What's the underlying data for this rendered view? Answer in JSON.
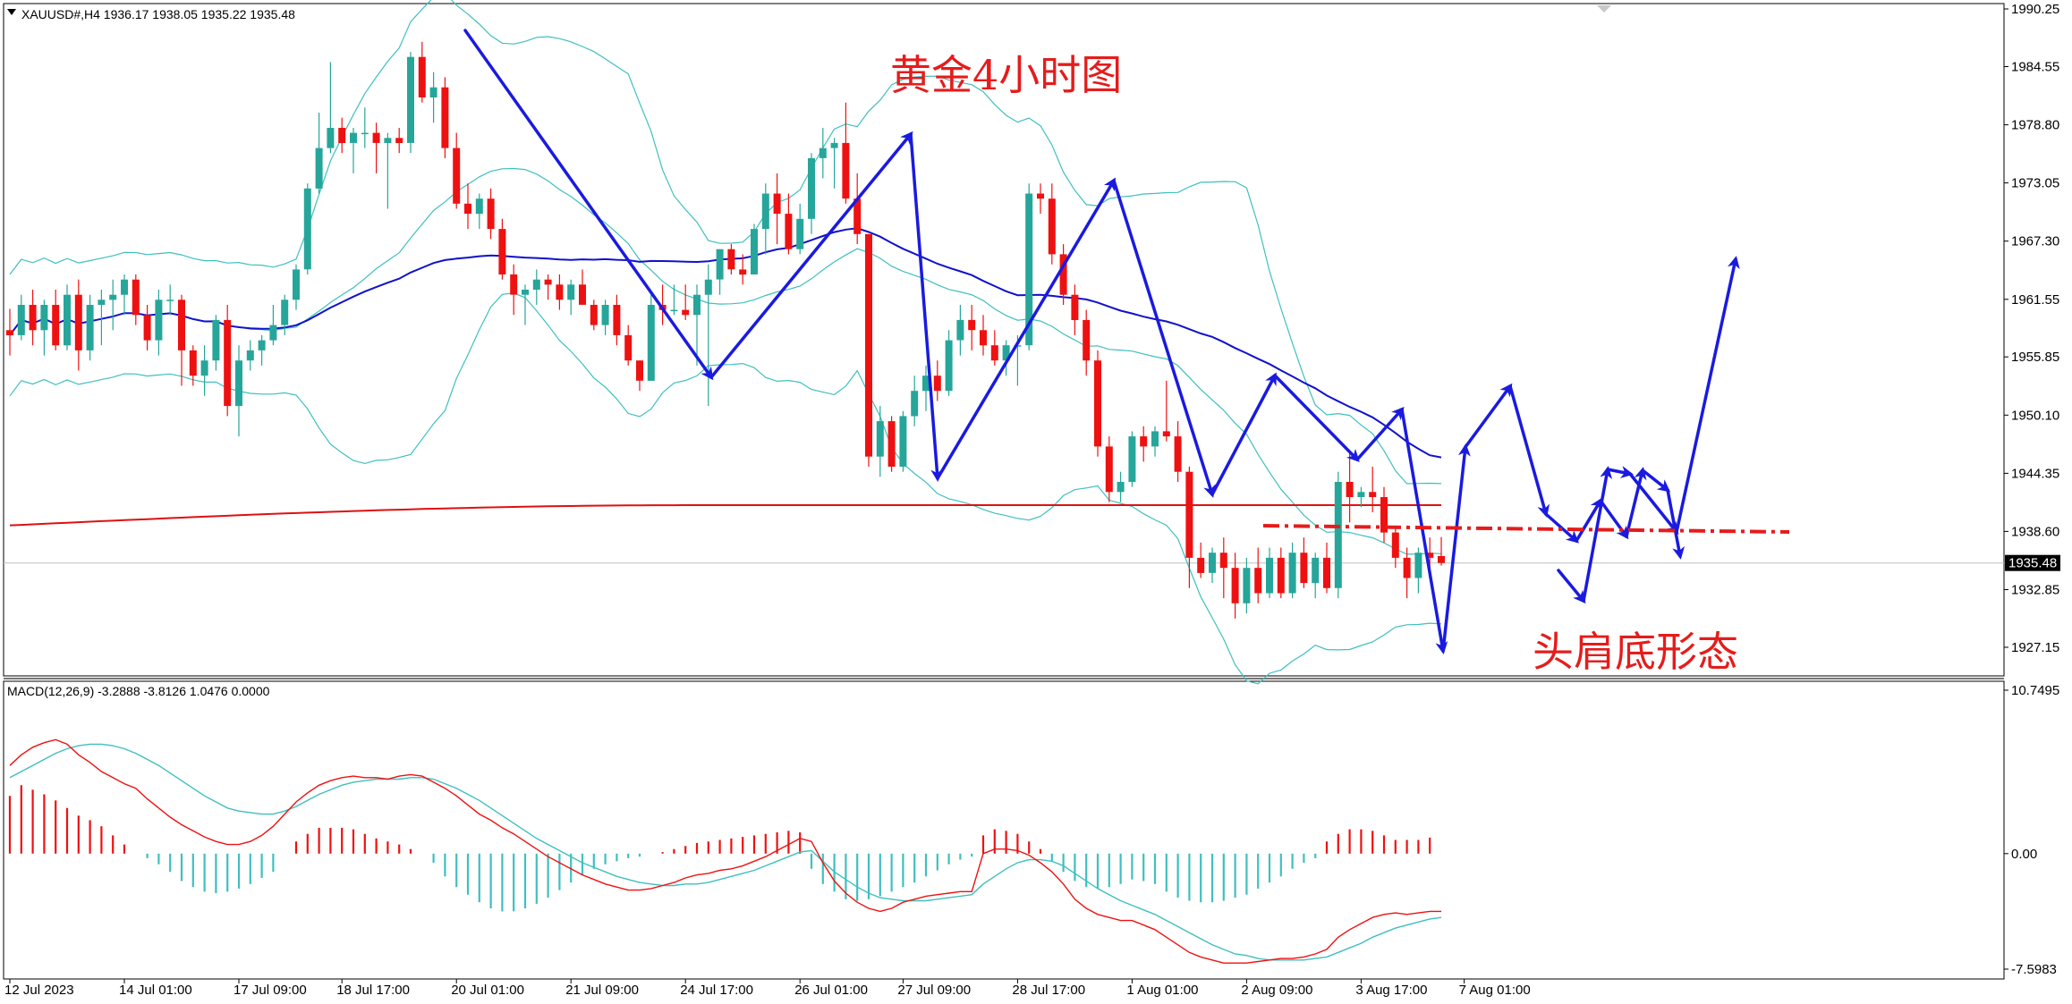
{
  "window": {
    "symbol_info": "XAUUSD#,H4  1936.17 1938.05 1935.22 1935.48",
    "macd_info": "MACD(12,26,9) -3.2888 -3.8126 1.0476 0.0000",
    "current_price_label": "1935.48"
  },
  "annotations": {
    "title": "黄金4小时图",
    "pattern": "头肩底形态"
  },
  "colors": {
    "bull_candle": "#26a69a",
    "bear_candle": "#ee1111",
    "bollinger": "#3fbfbf",
    "ma_blue": "#1111cc",
    "ma_red": "#dd1111",
    "macd_signal": "#3fbfbf",
    "macd_line": "#ee1111",
    "arrow": "#1a1ae0"
  },
  "chart_data": [
    {
      "type": "candlestick",
      "symbol": "XAUUSD#",
      "timeframe": "H4",
      "y_ticks": [
        "1990.25",
        "1984.55",
        "1978.80",
        "1973.05",
        "1967.30",
        "1961.55",
        "1955.85",
        "1950.10",
        "1944.35",
        "1938.60",
        "1932.85",
        "1927.15"
      ],
      "ylim": [
        1926.0,
        1990.25
      ],
      "x_tick_labels": [
        "12 Jul 2023",
        "14 Jul 01:00",
        "17 Jul 09:00",
        "18 Jul 17:00",
        "20 Jul 01:00",
        "21 Jul 09:00",
        "24 Jul 17:00",
        "26 Jul 01:00",
        "27 Jul 09:00",
        "28 Jul 17:00",
        "1 Aug 01:00",
        "2 Aug 09:00",
        "3 Aug 17:00",
        "7 Aug 01:00"
      ],
      "candles": [
        [
          1958.5,
          1960.6,
          1956.0,
          1958.0
        ],
        [
          1958.0,
          1962.0,
          1957.5,
          1961.0
        ],
        [
          1961.0,
          1962.5,
          1957.0,
          1958.5
        ],
        [
          1958.5,
          1961.5,
          1956.0,
          1961.0
        ],
        [
          1961.0,
          1962.5,
          1956.5,
          1957.0
        ],
        [
          1957.0,
          1963.0,
          1956.5,
          1962.0
        ],
        [
          1962.0,
          1963.5,
          1954.5,
          1956.5
        ],
        [
          1956.5,
          1962.0,
          1955.5,
          1961.0
        ],
        [
          1961.0,
          1962.5,
          1957.0,
          1961.5
        ],
        [
          1961.5,
          1963.5,
          1958.5,
          1962.0
        ],
        [
          1962.0,
          1964.0,
          1960.0,
          1963.5
        ],
        [
          1963.5,
          1964.0,
          1959.0,
          1960.0
        ],
        [
          1960.0,
          1961.0,
          1956.5,
          1957.5
        ],
        [
          1957.5,
          1962.5,
          1956.0,
          1961.5
        ],
        [
          1961.5,
          1963.0,
          1960.0,
          1961.5
        ],
        [
          1961.5,
          1962.0,
          1953.0,
          1956.5
        ],
        [
          1956.5,
          1957.0,
          1953.0,
          1954.0
        ],
        [
          1954.0,
          1957.0,
          1952.0,
          1955.5
        ],
        [
          1955.5,
          1960.0,
          1954.5,
          1959.5
        ],
        [
          1959.5,
          1961.0,
          1950.0,
          1951.0
        ],
        [
          1951.0,
          1957.0,
          1948.0,
          1955.5
        ],
        [
          1955.5,
          1957.5,
          1954.5,
          1956.5
        ],
        [
          1956.5,
          1958.0,
          1955.0,
          1957.5
        ],
        [
          1957.5,
          1961.0,
          1957.0,
          1959.0
        ],
        [
          1959.0,
          1962.0,
          1958.0,
          1961.5
        ],
        [
          1961.5,
          1965.0,
          1960.5,
          1964.5
        ],
        [
          1964.5,
          1973.0,
          1964.0,
          1972.5
        ],
        [
          1972.5,
          1980.0,
          1972.0,
          1976.5
        ],
        [
          1976.5,
          1985.0,
          1976.0,
          1978.5
        ],
        [
          1978.5,
          1979.5,
          1976.0,
          1977.0
        ],
        [
          1977.0,
          1978.5,
          1974.0,
          1978.0
        ],
        [
          1978.0,
          1980.5,
          1976.5,
          1978.0
        ],
        [
          1978.0,
          1979.0,
          1974.0,
          1977.0
        ],
        [
          1977.0,
          1978.0,
          1970.5,
          1977.5
        ],
        [
          1977.5,
          1978.5,
          1976.0,
          1977.0
        ],
        [
          1977.0,
          1986.0,
          1976.0,
          1985.5
        ],
        [
          1985.5,
          1987.0,
          1981.0,
          1981.5
        ],
        [
          1981.5,
          1984.0,
          1979.0,
          1982.5
        ],
        [
          1982.5,
          1983.5,
          1975.5,
          1976.5
        ],
        [
          1976.5,
          1978.0,
          1970.5,
          1971.0
        ],
        [
          1971.0,
          1973.0,
          1968.5,
          1970.0
        ],
        [
          1970.0,
          1972.0,
          1968.5,
          1971.5
        ],
        [
          1971.5,
          1972.5,
          1967.5,
          1968.5
        ],
        [
          1968.5,
          1969.5,
          1963.5,
          1964.0
        ],
        [
          1964.0,
          1965.0,
          1960.0,
          1962.0
        ],
        [
          1962.0,
          1963.0,
          1959.0,
          1962.5
        ],
        [
          1962.5,
          1964.5,
          1961.0,
          1963.5
        ],
        [
          1963.5,
          1964.0,
          1961.5,
          1963.0
        ],
        [
          1963.0,
          1964.0,
          1960.5,
          1961.5
        ],
        [
          1961.5,
          1963.5,
          1960.0,
          1963.0
        ],
        [
          1963.0,
          1964.5,
          1961.0,
          1961.0
        ],
        [
          1961.0,
          1961.5,
          1958.5,
          1959.0
        ],
        [
          1959.0,
          1961.5,
          1958.0,
          1961.0
        ],
        [
          1961.0,
          1962.0,
          1957.0,
          1958.0
        ],
        [
          1958.0,
          1959.0,
          1955.0,
          1955.5
        ],
        [
          1955.5,
          1955.5,
          1952.5,
          1953.5
        ],
        [
          1953.5,
          1962.0,
          1953.5,
          1961.0
        ],
        [
          1961.0,
          1963.0,
          1959.0,
          1960.5
        ],
        [
          1960.5,
          1963.0,
          1960.0,
          1960.5
        ],
        [
          1960.5,
          1963.0,
          1959.5,
          1960.0
        ],
        [
          1960.0,
          1963.0,
          1955.0,
          1962.0
        ],
        [
          1962.0,
          1965.0,
          1951.0,
          1963.5
        ],
        [
          1963.5,
          1966.5,
          1962.0,
          1966.5
        ],
        [
          1966.5,
          1967.0,
          1964.0,
          1964.5
        ],
        [
          1964.5,
          1966.0,
          1963.0,
          1964.0
        ],
        [
          1964.0,
          1969.0,
          1964.0,
          1968.5
        ],
        [
          1968.5,
          1973.0,
          1966.0,
          1972.0
        ],
        [
          1972.0,
          1974.0,
          1967.0,
          1970.0
        ],
        [
          1970.0,
          1972.0,
          1966.0,
          1966.5
        ],
        [
          1966.5,
          1971.0,
          1966.0,
          1969.5
        ],
        [
          1969.5,
          1976.0,
          1968.0,
          1975.5
        ],
        [
          1975.5,
          1978.5,
          1973.5,
          1976.5
        ],
        [
          1976.5,
          1977.5,
          1972.5,
          1977.0
        ],
        [
          1977.0,
          1981.0,
          1971.0,
          1971.5
        ],
        [
          1971.5,
          1974.0,
          1967.0,
          1968.0
        ],
        [
          1968.0,
          1968.0,
          1945.0,
          1946.0
        ],
        [
          1946.0,
          1951.0,
          1944.0,
          1949.5
        ],
        [
          1949.5,
          1950.0,
          1944.5,
          1945.0
        ],
        [
          1945.0,
          1950.5,
          1944.5,
          1950.0
        ],
        [
          1950.0,
          1954.0,
          1949.0,
          1952.5
        ],
        [
          1952.5,
          1955.0,
          1950.5,
          1954.0
        ],
        [
          1954.0,
          1955.5,
          1951.5,
          1952.5
        ],
        [
          1952.5,
          1958.5,
          1952.0,
          1957.5
        ],
        [
          1957.5,
          1961.0,
          1956.0,
          1959.5
        ],
        [
          1959.5,
          1961.0,
          1956.5,
          1958.5
        ],
        [
          1958.5,
          1960.0,
          1956.0,
          1957.0
        ],
        [
          1957.0,
          1958.5,
          1955.0,
          1955.5
        ],
        [
          1955.5,
          1957.5,
          1954.0,
          1957.0
        ],
        [
          1957.0,
          1958.0,
          1953.0,
          1957.0
        ],
        [
          1957.0,
          1973.0,
          1956.5,
          1972.0
        ],
        [
          1972.0,
          1973.0,
          1970.0,
          1971.5
        ],
        [
          1971.5,
          1973.0,
          1965.0,
          1966.0
        ],
        [
          1966.0,
          1967.0,
          1961.0,
          1962.0
        ],
        [
          1962.0,
          1963.0,
          1958.0,
          1959.5
        ],
        [
          1959.5,
          1960.5,
          1954.0,
          1955.5
        ],
        [
          1955.5,
          1956.5,
          1946.0,
          1947.0
        ],
        [
          1947.0,
          1948.0,
          1941.5,
          1942.5
        ],
        [
          1942.5,
          1944.5,
          1941.5,
          1943.5
        ],
        [
          1943.5,
          1948.5,
          1943.0,
          1948.0
        ],
        [
          1948.0,
          1949.0,
          1945.5,
          1947.0
        ],
        [
          1947.0,
          1949.0,
          1946.0,
          1948.5
        ],
        [
          1948.5,
          1953.5,
          1947.5,
          1948.0
        ],
        [
          1948.0,
          1949.5,
          1943.5,
          1944.5
        ],
        [
          1944.5,
          1945.0,
          1933.0,
          1936.0
        ],
        [
          1936.0,
          1937.5,
          1934.0,
          1934.5
        ],
        [
          1934.5,
          1937.0,
          1933.5,
          1936.5
        ],
        [
          1936.5,
          1938.0,
          1932.0,
          1935.0
        ],
        [
          1935.0,
          1936.5,
          1930.0,
          1931.5
        ],
        [
          1931.5,
          1936.0,
          1930.5,
          1935.0
        ],
        [
          1935.0,
          1937.0,
          1931.5,
          1932.5
        ],
        [
          1932.5,
          1937.0,
          1932.0,
          1936.0
        ],
        [
          1936.0,
          1937.0,
          1932.0,
          1932.5
        ],
        [
          1932.5,
          1937.5,
          1932.0,
          1936.5
        ],
        [
          1936.5,
          1938.0,
          1933.0,
          1933.5
        ],
        [
          1933.5,
          1936.5,
          1932.0,
          1936.0
        ],
        [
          1936.0,
          1937.5,
          1932.5,
          1933.0
        ],
        [
          1933.0,
          1944.5,
          1932.0,
          1943.5
        ],
        [
          1943.5,
          1946.5,
          1939.5,
          1942.0
        ],
        [
          1942.0,
          1943.0,
          1941.0,
          1942.5
        ],
        [
          1942.5,
          1945.0,
          1940.5,
          1942.0
        ],
        [
          1942.0,
          1943.0,
          1937.5,
          1938.5
        ],
        [
          1938.5,
          1939.0,
          1935.0,
          1936.0
        ],
        [
          1936.0,
          1937.0,
          1932.0,
          1934.0
        ],
        [
          1934.0,
          1937.0,
          1932.5,
          1936.5
        ],
        [
          1936.5,
          1938.0,
          1935.0,
          1936.0
        ],
        [
          1936.17,
          1938.05,
          1935.22,
          1935.48
        ]
      ]
    },
    {
      "type": "line",
      "title": "MACD(12,26,9)",
      "y_ticks": [
        "10.7495",
        "0.00",
        "-7.5983"
      ],
      "ylim": [
        -7.5983,
        10.7495
      ],
      "histogram": [
        3.8,
        4.5,
        4.2,
        3.9,
        3.5,
        3.0,
        2.5,
        2.2,
        1.8,
        1.2,
        0.6,
        0.0,
        -0.3,
        -0.7,
        -1.2,
        -1.8,
        -2.2,
        -2.5,
        -2.6,
        -2.5,
        -2.3,
        -2.0,
        -1.6,
        -1.2,
        0.0,
        0.8,
        1.3,
        1.7,
        1.7,
        1.7,
        1.6,
        1.3,
        1.0,
        0.8,
        0.6,
        0.3,
        0.0,
        -0.6,
        -1.5,
        -2.2,
        -2.7,
        -3.2,
        -3.6,
        -3.8,
        -3.8,
        -3.6,
        -3.3,
        -2.9,
        -2.4,
        -1.9,
        -1.4,
        -1.0,
        -0.7,
        -0.5,
        -0.3,
        -0.2,
        0.0,
        0.1,
        0.3,
        0.5,
        0.7,
        0.8,
        0.9,
        1.0,
        1.1,
        1.2,
        1.3,
        1.4,
        1.5,
        1.4,
        -1.0,
        -2.0,
        -2.5,
        -3.0,
        -3.1,
        -3.0,
        -2.8,
        -2.5,
        -2.2,
        -1.9,
        -1.5,
        -1.1,
        -0.7,
        -0.4,
        -0.2,
        1.2,
        1.6,
        1.5,
        1.3,
        0.8,
        0.3,
        -0.5,
        -1.2,
        -1.8,
        -2.2,
        -2.3,
        -2.2,
        -2.0,
        -1.7,
        -1.8,
        -2.0,
        -2.5,
        -2.9,
        -3.1,
        -3.2,
        -3.2,
        -3.1,
        -2.9,
        -2.7,
        -2.3,
        -1.9,
        -1.5,
        -1.0,
        -0.6,
        -0.3,
        0.8,
        1.3,
        1.6,
        1.6,
        1.5,
        1.2,
        0.9,
        0.9,
        0.9,
        1.05
      ],
      "macd_line": [
        5.8,
        6.5,
        7.0,
        7.3,
        7.5,
        7.2,
        6.5,
        6.0,
        5.4,
        5.0,
        4.6,
        4.3,
        3.6,
        3.0,
        2.4,
        1.9,
        1.5,
        1.1,
        0.8,
        0.6,
        0.6,
        0.8,
        1.2,
        1.8,
        2.6,
        3.4,
        4.0,
        4.5,
        4.8,
        5.0,
        5.1,
        5.0,
        5.0,
        4.9,
        5.1,
        5.2,
        5.1,
        4.7,
        4.3,
        3.8,
        3.2,
        2.6,
        2.2,
        1.7,
        1.3,
        0.8,
        0.3,
        -0.2,
        -0.6,
        -1.0,
        -1.4,
        -1.7,
        -2.0,
        -2.2,
        -2.4,
        -2.4,
        -2.3,
        -2.1,
        -1.9,
        -1.6,
        -1.4,
        -1.3,
        -1.1,
        -1.0,
        -0.8,
        -0.5,
        -0.2,
        0.2,
        0.6,
        1.0,
        0.8,
        -0.6,
        -1.8,
        -2.6,
        -3.2,
        -3.6,
        -3.8,
        -3.6,
        -3.2,
        -3.0,
        -2.8,
        -2.7,
        -2.6,
        -2.5,
        -2.5,
        0.0,
        0.3,
        0.3,
        0.2,
        -0.1,
        -0.6,
        -1.2,
        -2.0,
        -3.0,
        -3.6,
        -4.0,
        -4.2,
        -4.4,
        -4.4,
        -4.7,
        -5.0,
        -5.5,
        -6.0,
        -6.5,
        -6.8,
        -7.0,
        -7.2,
        -7.2,
        -7.2,
        -7.1,
        -7.0,
        -6.9,
        -6.9,
        -6.8,
        -6.6,
        -6.3,
        -5.5,
        -5.0,
        -4.6,
        -4.2,
        -4.0,
        -3.9,
        -4.0,
        -3.9,
        -3.8,
        -3.8
      ],
      "signal_line": [
        5.0,
        5.4,
        5.8,
        6.2,
        6.6,
        6.9,
        7.1,
        7.2,
        7.2,
        7.1,
        6.9,
        6.6,
        6.2,
        5.8,
        5.3,
        4.8,
        4.3,
        3.8,
        3.4,
        3.0,
        2.8,
        2.7,
        2.6,
        2.6,
        2.8,
        3.1,
        3.5,
        3.9,
        4.2,
        4.5,
        4.7,
        4.8,
        4.9,
        4.9,
        4.9,
        5.0,
        5.0,
        4.9,
        4.6,
        4.3,
        3.9,
        3.5,
        3.0,
        2.5,
        2.0,
        1.5,
        1.0,
        0.6,
        0.2,
        -0.2,
        -0.6,
        -0.9,
        -1.2,
        -1.5,
        -1.7,
        -1.9,
        -2.0,
        -2.1,
        -2.1,
        -2.0,
        -2.0,
        -1.9,
        -1.7,
        -1.5,
        -1.3,
        -1.1,
        -0.8,
        -0.5,
        -0.2,
        0.1,
        0.2,
        -0.5,
        -1.2,
        -1.7,
        -2.2,
        -2.6,
        -2.9,
        -3.0,
        -3.1,
        -3.1,
        -3.1,
        -3.0,
        -2.9,
        -2.8,
        -2.7,
        -2.0,
        -1.5,
        -1.0,
        -0.6,
        -0.4,
        -0.4,
        -0.5,
        -0.8,
        -1.3,
        -1.8,
        -2.3,
        -2.7,
        -3.1,
        -3.4,
        -3.7,
        -4.0,
        -4.4,
        -4.8,
        -5.2,
        -5.6,
        -6.0,
        -6.3,
        -6.6,
        -6.7,
        -6.9,
        -7.0,
        -7.0,
        -7.0,
        -7.0,
        -6.9,
        -6.8,
        -6.5,
        -6.2,
        -5.9,
        -5.5,
        -5.2,
        -4.9,
        -4.7,
        -4.5,
        -4.3,
        -4.2
      ]
    }
  ]
}
